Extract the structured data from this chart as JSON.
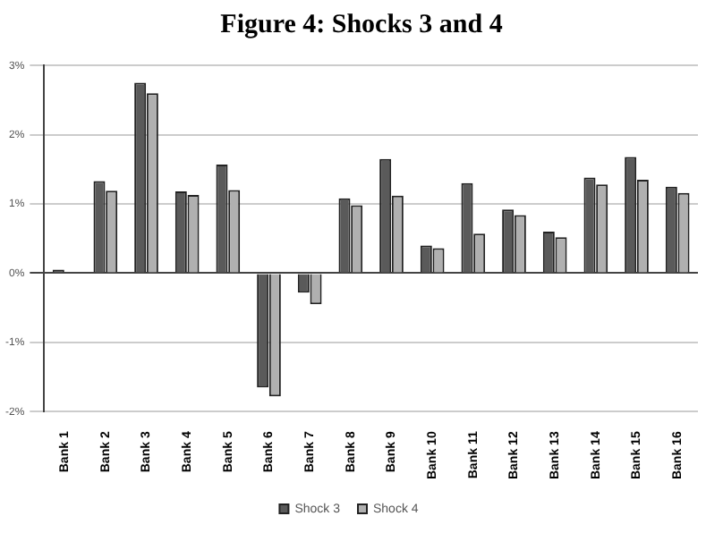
{
  "chart_data": {
    "type": "bar",
    "title": "Figure 4: Shocks 3 and 4",
    "categories": [
      "Bank 1",
      "Bank 2",
      "Bank 3",
      "Bank 4",
      "Bank 5",
      "Bank 6",
      "Bank 7",
      "Bank 8",
      "Bank 9",
      "Bank 10",
      "Bank 11",
      "Bank 12",
      "Bank 13",
      "Bank 14",
      "Bank 15",
      "Bank 16"
    ],
    "series": [
      {
        "name": "Shock 3",
        "color": "#5a5a5a",
        "values": [
          0.05,
          1.33,
          2.75,
          1.18,
          1.57,
          -1.65,
          -0.28,
          1.08,
          1.65,
          0.4,
          1.3,
          0.92,
          0.6,
          1.38,
          1.68,
          1.25
        ]
      },
      {
        "name": "Shock 4",
        "color": "#b0b0b0",
        "values": [
          null,
          1.19,
          2.6,
          1.13,
          1.2,
          -1.78,
          -0.45,
          0.98,
          1.12,
          0.36,
          0.57,
          0.84,
          0.52,
          1.28,
          1.35,
          1.16
        ]
      }
    ],
    "ylim": [
      -2,
      3
    ],
    "yticks": [
      {
        "value": -2,
        "label": "-2%"
      },
      {
        "value": -1,
        "label": "-1%"
      },
      {
        "value": 0,
        "label": "0%"
      },
      {
        "value": 1,
        "label": "1%"
      },
      {
        "value": 2,
        "label": "2%"
      },
      {
        "value": 3,
        "label": "3%"
      }
    ],
    "grid": "y",
    "legend": "bottom"
  }
}
